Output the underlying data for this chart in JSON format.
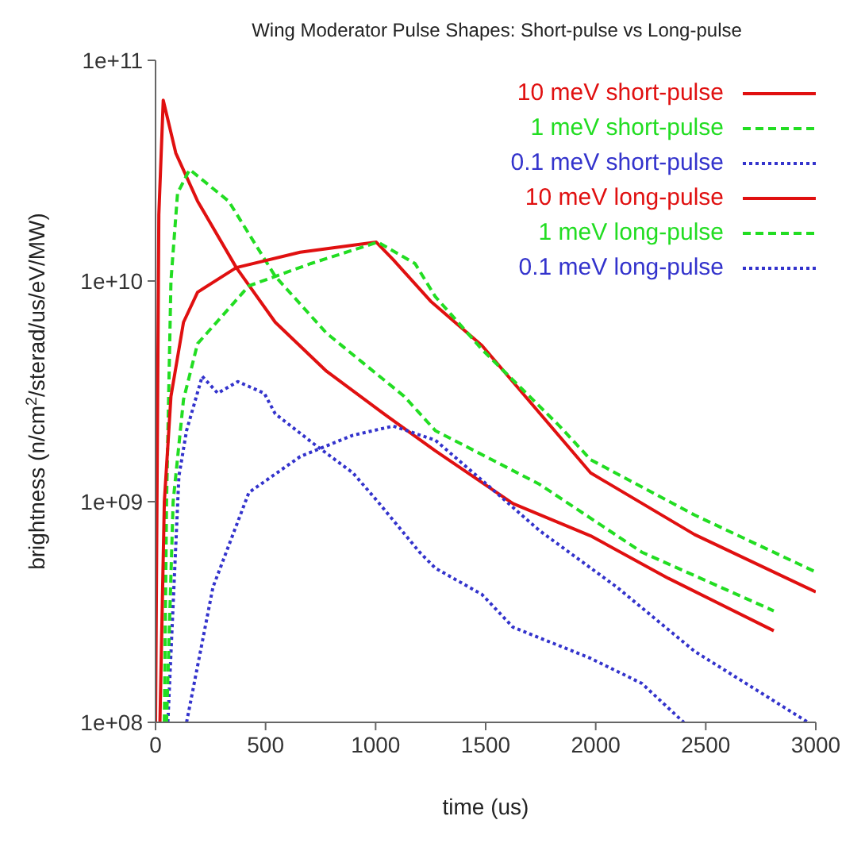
{
  "chart_data": {
    "type": "line",
    "title": "Wing Moderator Pulse Shapes: Short-pulse vs Long-pulse",
    "xlabel": "time (us)",
    "ylabel": "brightness (n/cm$^{2}$/sterad/us/eV/MW)",
    "log": "y",
    "xlim": [
      0,
      3000
    ],
    "xticks": [
      0,
      500,
      1000,
      1500,
      2000,
      2500,
      3000
    ],
    "ylim": [
      100000000,
      100000000000
    ],
    "yticks": [
      {
        "value": 100000000,
        "label": "1e+08"
      },
      {
        "value": 1000000000,
        "label": "1e+09"
      },
      {
        "value": 10000000000,
        "label": "1e+10"
      },
      {
        "value": 100000000000,
        "label": "1e+11"
      }
    ],
    "grid": false,
    "legend": "top right",
    "marker": "none",
    "series": [
      {
        "name": "10 meV short-pulse",
        "color": "#e01010",
        "line_style": "solid",
        "x": [
          0,
          15,
          35,
          92,
          191,
          367,
          544,
          777,
          1038,
          1271,
          1624,
          1977,
          2329,
          2809
        ],
        "values": [
          100000000,
          20000000000,
          66000000000,
          38000000000,
          23000000000,
          11500000000,
          6500000000,
          3900000000,
          2500000000,
          1700000000,
          980000000,
          700000000,
          450000000,
          260000000
        ]
      },
      {
        "name": "1 meV short-pulse",
        "color": "#22dd22",
        "line_style": "dashed",
        "x": [
          40,
          50,
          70,
          100,
          155,
          332,
          544,
          777,
          1130,
          1271,
          1744,
          2210,
          2809
        ],
        "values": [
          100000000,
          1000000000,
          10000000000,
          25000000000,
          32000000000,
          23000000000,
          10500000000,
          5800000000,
          3000000000,
          2100000000,
          1200000000,
          590000000,
          320000000
        ]
      },
      {
        "name": "0.1 meV short-pulse",
        "color": "#3333cc",
        "line_style": "dotted",
        "x": [
          56,
          106,
          141,
          212,
          283,
          374,
          494,
          544,
          728,
          897,
          1010,
          1200,
          1271,
          1483,
          1624,
          1977,
          2210,
          2400
        ],
        "values": [
          100000000,
          1300000000,
          2100000000,
          3700000000,
          3100000000,
          3500000000,
          3100000000,
          2500000000,
          1800000000,
          1350000000,
          1000000000,
          590000000,
          500000000,
          380000000,
          270000000,
          195000000,
          150000000,
          100000000
        ]
      },
      {
        "name": "10 meV long-pulse",
        "color": "#e01010",
        "line_style": "solid",
        "x": [
          20,
          40,
          70,
          127,
          191,
          367,
          657,
          1003,
          1080,
          1250,
          1483,
          1977,
          2449,
          3000
        ],
        "values": [
          100000000,
          1000000000,
          3000000000,
          6500000000,
          8900000000,
          11500000000,
          13500000000,
          15000000000,
          12500000000,
          8100000000,
          5100000000,
          1350000000,
          710000000,
          390000000
        ]
      },
      {
        "name": "1 meV long-pulse",
        "color": "#22dd22",
        "line_style": "dashed",
        "x": [
          50,
          80,
          127,
          191,
          424,
          706,
          1010,
          1179,
          1271,
          1483,
          1836,
          1977,
          2449,
          3000
        ],
        "values": [
          100000000,
          1000000000,
          2900000000,
          5200000000,
          9500000000,
          12000000000,
          15000000000,
          12000000000,
          8500000000,
          4900000000,
          2200000000,
          1550000000,
          870000000,
          480000000
        ]
      },
      {
        "name": "0.1 meV long-pulse",
        "color": "#3333cc",
        "line_style": "dotted",
        "x": [
          141,
          261,
          424,
          657,
          897,
          1080,
          1271,
          1504,
          1744,
          2096,
          2449,
          2965
        ],
        "values": [
          100000000,
          410000000,
          1100000000,
          1600000000,
          2000000000,
          2200000000,
          1900000000,
          1200000000,
          740000000,
          410000000,
          210000000,
          100000000
        ]
      }
    ]
  }
}
